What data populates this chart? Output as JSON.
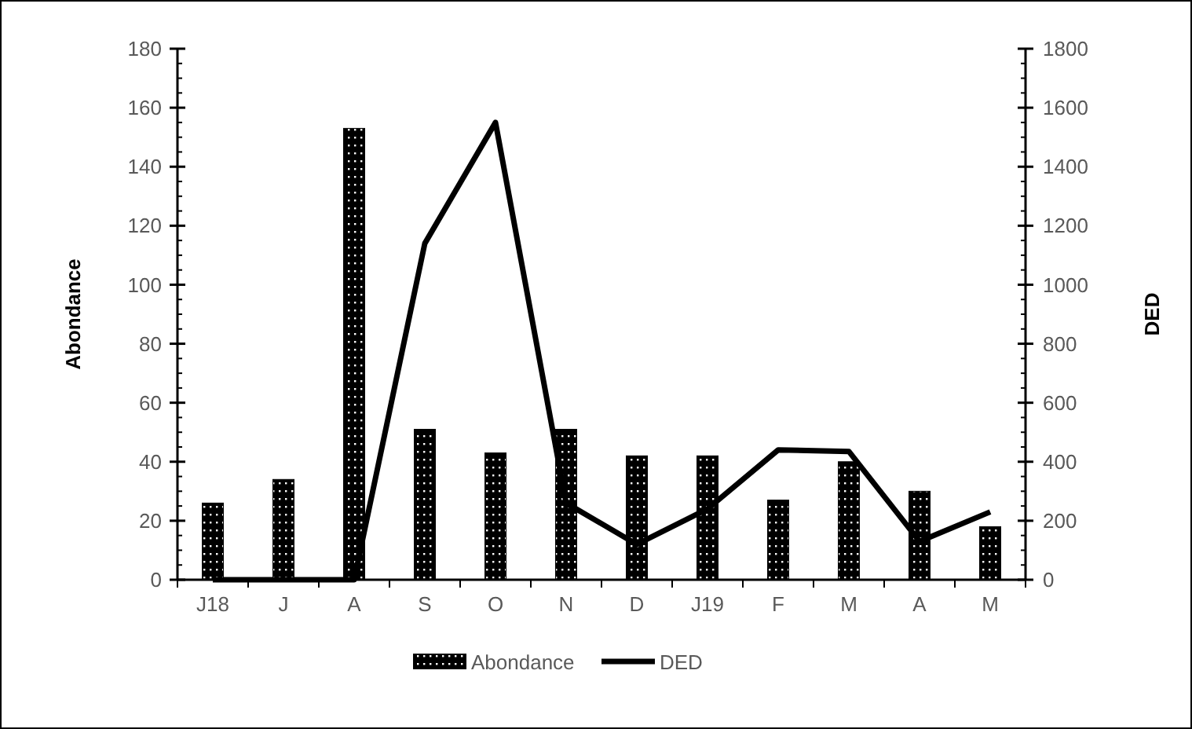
{
  "chart_data": {
    "type": "bar",
    "ylabel": "Abondance",
    "y2label": "DED",
    "categories": [
      "J18",
      "J",
      "A",
      "S",
      "O",
      "N",
      "D",
      "J19",
      "F",
      "M",
      "A",
      "M"
    ],
    "series": [
      {
        "name": "Abondance",
        "color": "#000000",
        "values": [
          26,
          34,
          153,
          51,
          43,
          51,
          42,
          42,
          27,
          40,
          30,
          18
        ]
      },
      {
        "name": "DED",
        "type": "line",
        "axis": "y2",
        "color": "#000000",
        "values": [
          0,
          0,
          0,
          1140,
          1550,
          260,
          120,
          240,
          440,
          435,
          130,
          230
        ]
      }
    ],
    "ylim": [
      0,
      180
    ],
    "yticks": [
      0,
      20,
      40,
      60,
      80,
      100,
      120,
      140,
      160,
      180
    ],
    "y2lim": [
      0,
      1800
    ],
    "y2ticks": [
      0,
      200,
      400,
      600,
      800,
      1000,
      1200,
      1400,
      1600,
      1800
    ],
    "legend": "bottom",
    "grid": false,
    "marker": "none",
    "line_style": "solid"
  }
}
